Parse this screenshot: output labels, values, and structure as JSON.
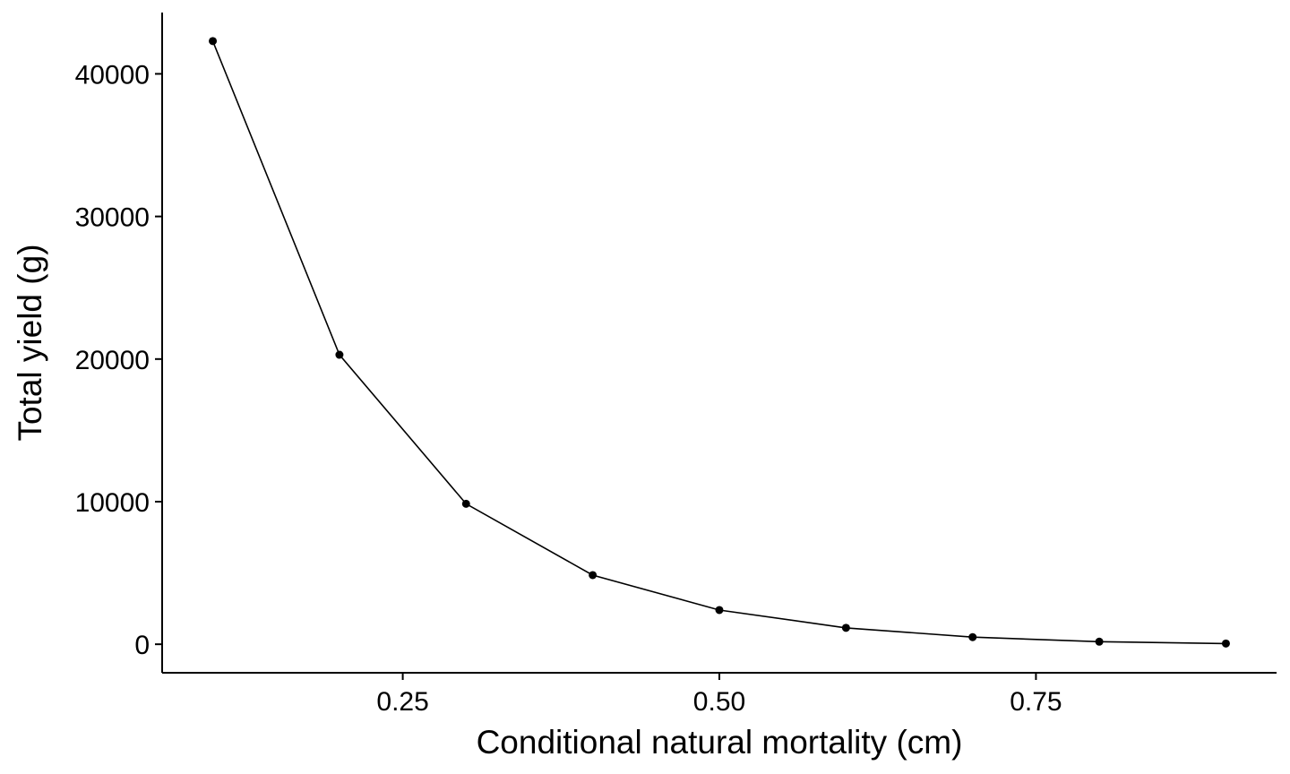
{
  "chart_data": {
    "type": "line",
    "title": "",
    "xlabel": "Conditional natural mortality (cm)",
    "ylabel": "Total yield (g)",
    "x": [
      0.1,
      0.2,
      0.3,
      0.4,
      0.5,
      0.6,
      0.7,
      0.8,
      0.9
    ],
    "series": [
      {
        "name": "Total yield",
        "values": [
          42300,
          20300,
          9850,
          4850,
          2400,
          1150,
          500,
          180,
          50
        ]
      }
    ],
    "xlim": [
      0.06,
      0.94
    ],
    "ylim": [
      -2000,
      44300
    ],
    "xticks": [
      0.25,
      0.5,
      0.75
    ],
    "xtick_labels": [
      "0.25",
      "0.50",
      "0.75"
    ],
    "yticks": [
      0,
      10000,
      20000,
      30000,
      40000
    ],
    "ytick_labels": [
      "0",
      "10000",
      "20000",
      "30000",
      "40000"
    ],
    "grid": false,
    "legend": "none",
    "colors": {
      "line": "#000000",
      "point": "#000000",
      "axis": "#000000",
      "background": "#ffffff"
    }
  }
}
